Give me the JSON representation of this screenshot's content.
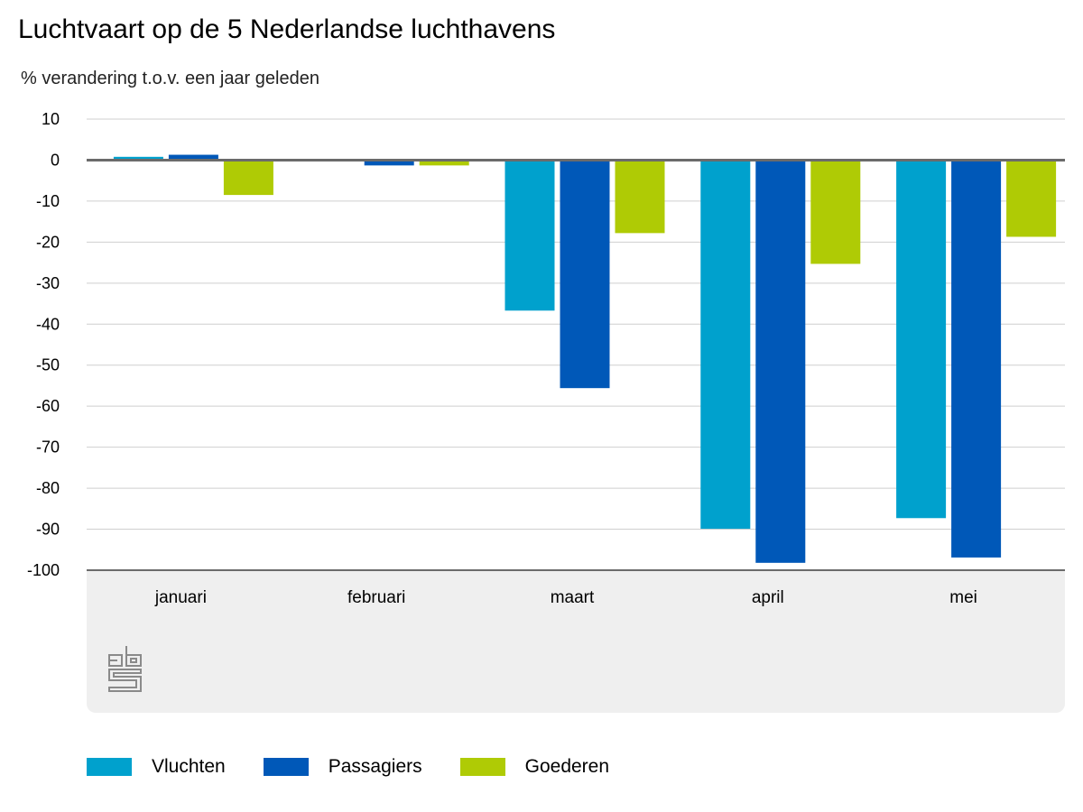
{
  "chart_data": {
    "type": "bar",
    "title": "Luchtvaart op de 5 Nederlandse luchthavens",
    "subtitle": "% verandering t.o.v. een jaar geleden",
    "xlabel": "",
    "ylabel": "% verandering t.o.v. een jaar geleden",
    "ylim": [
      -100,
      10
    ],
    "yticks": [
      10,
      0,
      -10,
      -20,
      -30,
      -40,
      -50,
      -60,
      -70,
      -80,
      -90,
      -100
    ],
    "grid": true,
    "legend_position": "bottom-left",
    "categories": [
      "januari",
      "februari",
      "maart",
      "april",
      "mei"
    ],
    "series": [
      {
        "name": "Vluchten",
        "color": "#00a1cd",
        "values": [
          0.8,
          0.0,
          -36.7,
          -89.9,
          -87.3
        ]
      },
      {
        "name": "Passagiers",
        "color": "#0058b8",
        "values": [
          1.3,
          -1.3,
          -55.6,
          -98.2,
          -96.9
        ]
      },
      {
        "name": "Goederen",
        "color": "#afcb05",
        "values": [
          -8.5,
          -1.3,
          -17.8,
          -25.3,
          -18.7
        ]
      }
    ]
  },
  "logo": {
    "name": "cbs"
  }
}
